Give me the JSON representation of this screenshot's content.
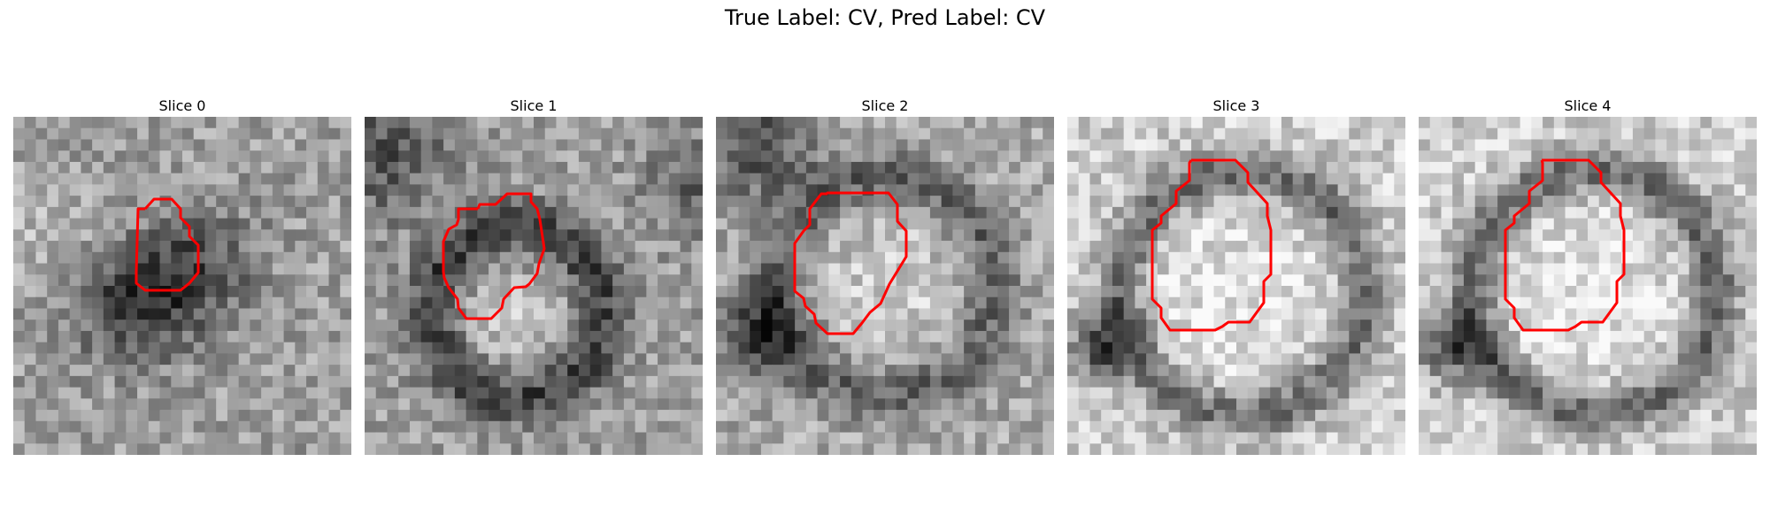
{
  "figure": {
    "title": "True Label: CV, Pred Label: CV"
  },
  "panels": [
    {
      "title": "Slice 0",
      "pattern": "noisy-dark-spot"
    },
    {
      "title": "Slice 1",
      "pattern": "ring"
    },
    {
      "title": "Slice 2",
      "pattern": "ring-bright"
    },
    {
      "title": "Slice 3",
      "pattern": "large-bright-vesicle"
    },
    {
      "title": "Slice 4",
      "pattern": "large-bright-vesicle"
    }
  ],
  "colors": {
    "contour": "#ff0000"
  },
  "grid": {
    "cells": 30
  }
}
